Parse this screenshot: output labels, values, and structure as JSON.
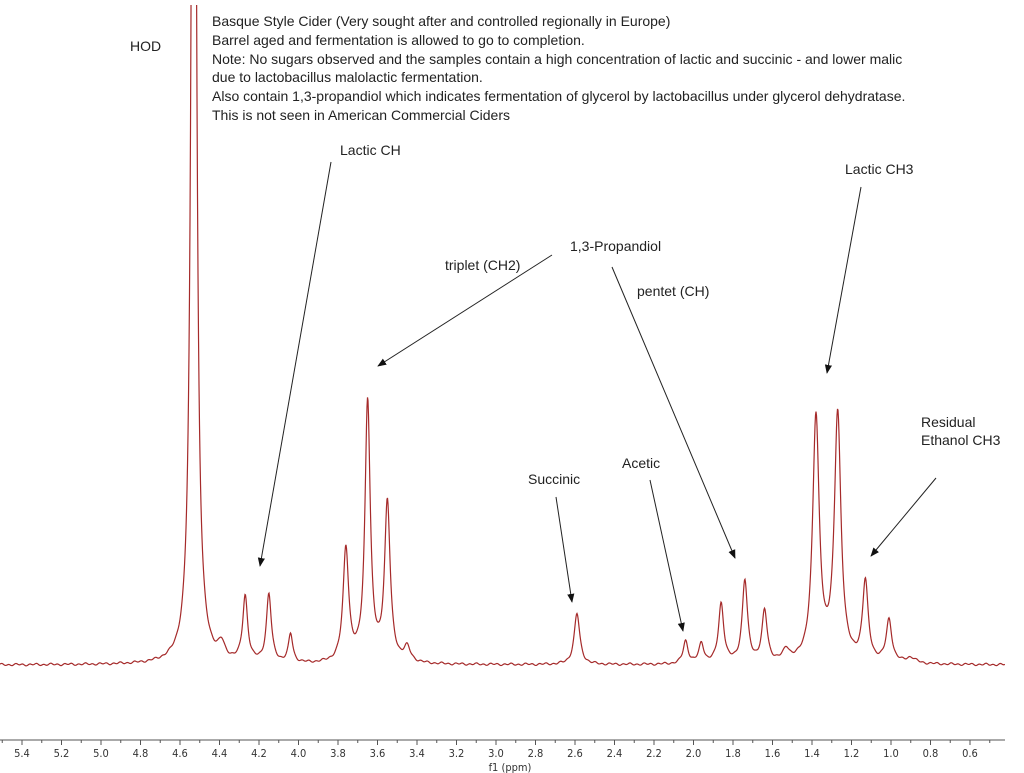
{
  "chart_data": {
    "type": "line",
    "title": "",
    "xlabel": "f1 (ppm)",
    "ylabel": "",
    "xlim": [
      5.51,
      0.42
    ],
    "x_reversed": true,
    "ylim": [
      -3,
      232
    ],
    "y_axis_shown": false,
    "grid": false,
    "line_color": "#a52a2a",
    "x_ticks": [
      "5.4",
      "5.2",
      "5.0",
      "4.8",
      "4.6",
      "4.4",
      "4.2",
      "4.0",
      "3.8",
      "3.6",
      "3.4",
      "3.2",
      "3.0",
      "2.8",
      "2.6",
      "2.4",
      "2.2",
      "2.0",
      "1.8",
      "1.6",
      "1.4",
      "1.2",
      "1.0",
      "0.8",
      "0.6"
    ],
    "peaks": [
      {
        "ppm": 4.53,
        "intensity": 530,
        "half_width": 0.0125
      },
      {
        "ppm": 4.39,
        "intensity": 5,
        "half_width": 0.02
      },
      {
        "ppm": 4.27,
        "intensity": 23,
        "half_width": 0.015
      },
      {
        "ppm": 4.15,
        "intensity": 24,
        "half_width": 0.015
      },
      {
        "ppm": 4.04,
        "intensity": 10,
        "half_width": 0.013
      },
      {
        "ppm": 3.76,
        "intensity": 40,
        "half_width": 0.017
      },
      {
        "ppm": 3.65,
        "intensity": 92,
        "half_width": 0.016
      },
      {
        "ppm": 3.55,
        "intensity": 56,
        "half_width": 0.017
      },
      {
        "ppm": 3.45,
        "intensity": 5,
        "half_width": 0.02
      },
      {
        "ppm": 2.59,
        "intensity": 18,
        "half_width": 0.017
      },
      {
        "ppm": 2.04,
        "intensity": 8,
        "half_width": 0.015
      },
      {
        "ppm": 1.96,
        "intensity": 7,
        "half_width": 0.015
      },
      {
        "ppm": 1.86,
        "intensity": 21,
        "half_width": 0.016
      },
      {
        "ppm": 1.74,
        "intensity": 29,
        "half_width": 0.016
      },
      {
        "ppm": 1.64,
        "intensity": 18,
        "half_width": 0.016
      },
      {
        "ppm": 1.53,
        "intensity": 4,
        "half_width": 0.02
      },
      {
        "ppm": 1.38,
        "intensity": 86,
        "half_width": 0.02
      },
      {
        "ppm": 1.27,
        "intensity": 87,
        "half_width": 0.02
      },
      {
        "ppm": 1.13,
        "intensity": 28,
        "half_width": 0.017
      },
      {
        "ppm": 1.01,
        "intensity": 15,
        "half_width": 0.017
      },
      {
        "ppm": 0.9,
        "intensity": 2,
        "half_width": 0.03
      }
    ],
    "annotations": {
      "hod": "HOD",
      "lactic_ch": "Lactic CH",
      "triplet": "triplet (CH2)",
      "propandiol": "1,3-Propandiol",
      "pentet": "pentet (CH)",
      "lactic_ch3": "Lactic CH3",
      "residual": "Residual",
      "ethanol": "Ethanol CH3",
      "succinic": "Succinic",
      "acetic": "Acetic"
    },
    "notes": [
      "Basque Style Cider (Very sought after and controlled regionally in Europe)",
      "Barrel aged and fermentation is allowed to go to completion.",
      "Note: No sugars observed and the samples contain a high concentration of lactic and succinic - and lower malic",
      "due to lactobacillus malolactic fermentation.",
      "Also contain 1,3-propandiol  which indicates fermentation of glycerol by lactobacillus under glycerol dehydratase.",
      "This is not seen in American Commercial Ciders"
    ]
  }
}
